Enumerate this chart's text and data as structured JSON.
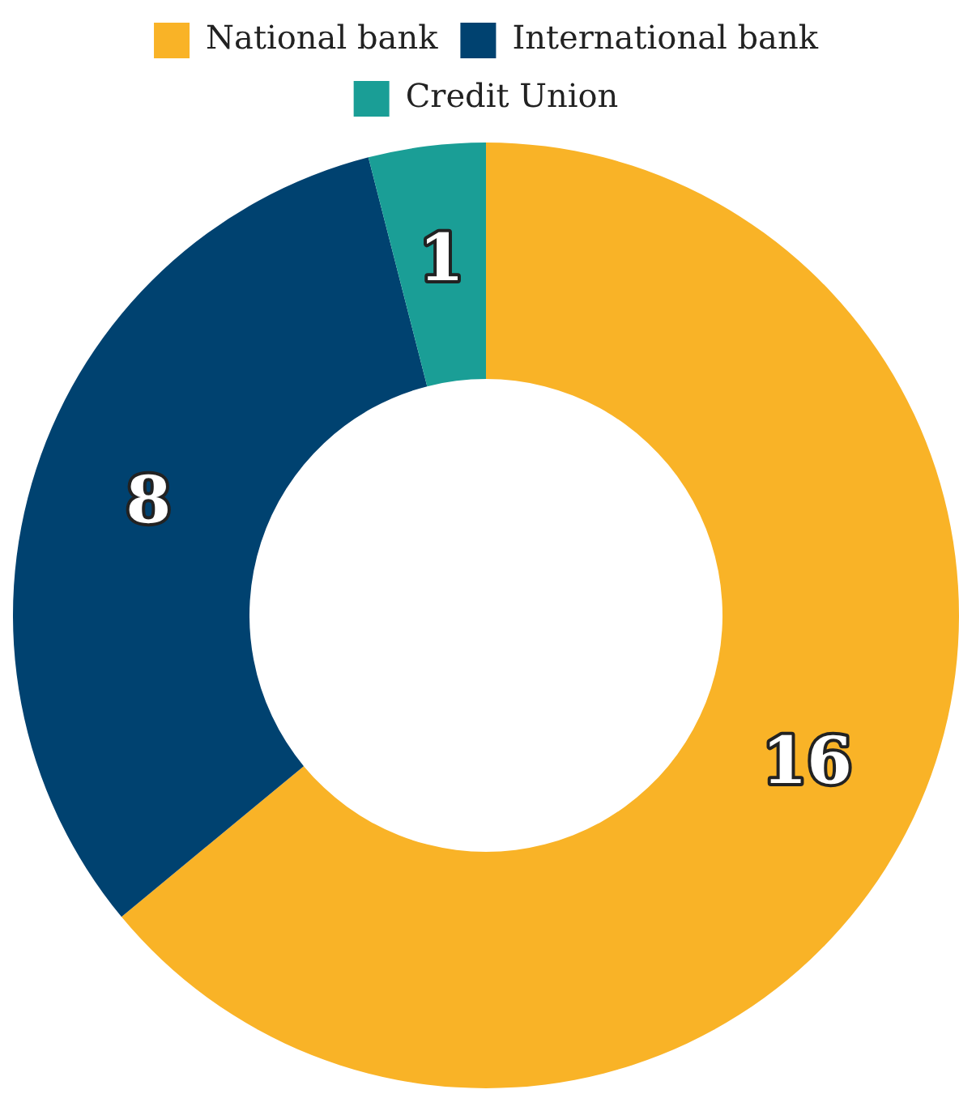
{
  "chart_data": {
    "type": "donut",
    "categories": [
      "National bank",
      "International bank",
      "Credit Union"
    ],
    "values": [
      16,
      8,
      1
    ],
    "colors": [
      "#f9b327",
      "#004270",
      "#1a9e96"
    ],
    "data_labels": true,
    "legend": "top"
  }
}
